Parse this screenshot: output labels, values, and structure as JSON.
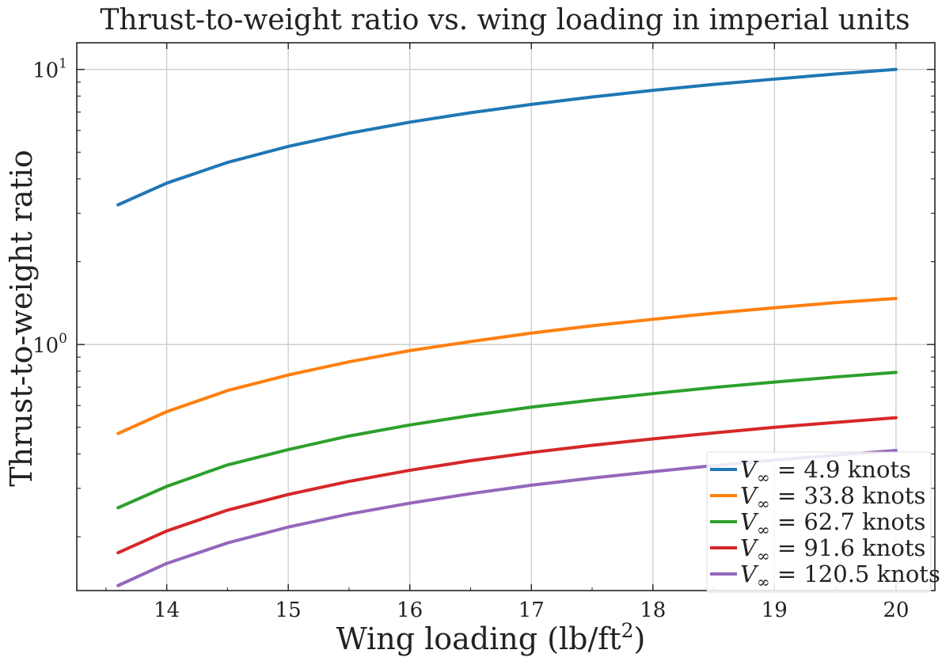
{
  "chart_data": {
    "type": "line",
    "title": "Thrust-to-weight ratio vs. wing loading in imperial units",
    "xlabel": "Wing loading (lb/ft",
    "xlabel_sup": "2",
    "xlabel_suffix": ")",
    "ylabel": "Thrust-to-weight ratio",
    "xscale": "linear",
    "yscale": "log",
    "xlim": [
      13.26,
      20.32
    ],
    "ylim": [
      0.1275,
      12.5
    ],
    "grid": true,
    "legend_position": "lower-right",
    "x_ticks": [
      {
        "value": 14,
        "label": "14"
      },
      {
        "value": 15,
        "label": "15"
      },
      {
        "value": 16,
        "label": "16"
      },
      {
        "value": 17,
        "label": "17"
      },
      {
        "value": 18,
        "label": "18"
      },
      {
        "value": 19,
        "label": "19"
      },
      {
        "value": 20,
        "label": "20"
      }
    ],
    "y_ticks": [
      {
        "value": 10,
        "base": "10",
        "exp": "1"
      },
      {
        "value": 1,
        "base": "10",
        "exp": "0"
      }
    ],
    "x": [
      13.6,
      14.0,
      14.5,
      15.0,
      15.5,
      16.0,
      16.5,
      17.0,
      17.5,
      18.0,
      18.5,
      19.0,
      19.5,
      20.0
    ],
    "series": [
      {
        "name_prefix": "V",
        "name_sub": "∞",
        "name_suffix": " = 4.9 knots",
        "color": "#1f77b4",
        "values": [
          3.22,
          3.86,
          4.59,
          5.25,
          5.86,
          6.43,
          6.96,
          7.46,
          7.94,
          8.39,
          8.82,
          9.22,
          9.62,
          10.0
        ]
      },
      {
        "name_prefix": "V",
        "name_sub": "∞",
        "name_suffix": " = 33.8 knots",
        "color": "#ff7f0e",
        "values": [
          0.475,
          0.57,
          0.68,
          0.775,
          0.865,
          0.95,
          1.025,
          1.1,
          1.17,
          1.235,
          1.3,
          1.36,
          1.42,
          1.47
        ]
      },
      {
        "name_prefix": "V",
        "name_sub": "∞",
        "name_suffix": " = 62.7 knots",
        "color": "#2ca02c",
        "values": [
          0.255,
          0.305,
          0.365,
          0.415,
          0.465,
          0.51,
          0.552,
          0.592,
          0.628,
          0.663,
          0.698,
          0.73,
          0.762,
          0.792
        ]
      },
      {
        "name_prefix": "V",
        "name_sub": "∞",
        "name_suffix": " = 91.6 knots",
        "color": "#d62728",
        "values": [
          0.175,
          0.21,
          0.25,
          0.285,
          0.318,
          0.349,
          0.378,
          0.405,
          0.43,
          0.454,
          0.477,
          0.5,
          0.521,
          0.542
        ]
      },
      {
        "name_prefix": "V",
        "name_sub": "∞",
        "name_suffix": " = 120.5 knots",
        "color": "#9467bd",
        "values": [
          0.133,
          0.16,
          0.19,
          0.217,
          0.242,
          0.265,
          0.287,
          0.308,
          0.327,
          0.345,
          0.363,
          0.38,
          0.396,
          0.412
        ]
      }
    ]
  }
}
